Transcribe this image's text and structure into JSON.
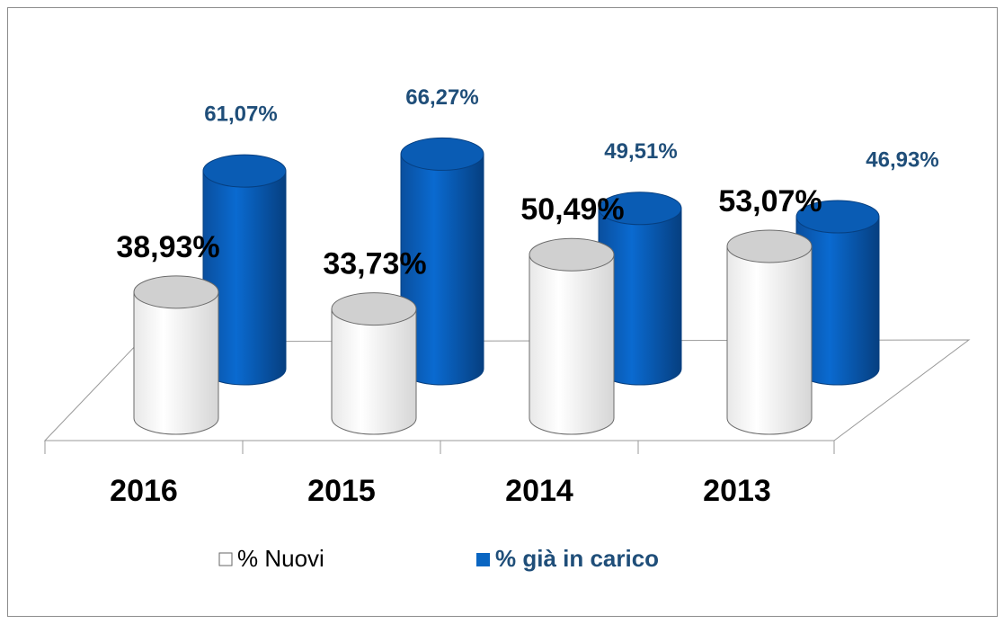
{
  "chart_data": {
    "type": "bar3d",
    "categories": [
      "2016",
      "2015",
      "2014",
      "2013"
    ],
    "series": [
      {
        "name": "% Nuovi",
        "color": "#ffffff",
        "values": [
          38.93,
          33.73,
          50.49,
          53.07
        ],
        "value_labels": [
          "38,93%",
          "33,73%",
          "50,49%",
          "53,07%"
        ]
      },
      {
        "name": "% già in carico",
        "color": "#0a66c2",
        "values": [
          61.07,
          66.27,
          49.51,
          46.93
        ],
        "value_labels": [
          "61,07%",
          "66,27%",
          "49,51%",
          "46,93%"
        ]
      }
    ],
    "legend": "bottom"
  }
}
